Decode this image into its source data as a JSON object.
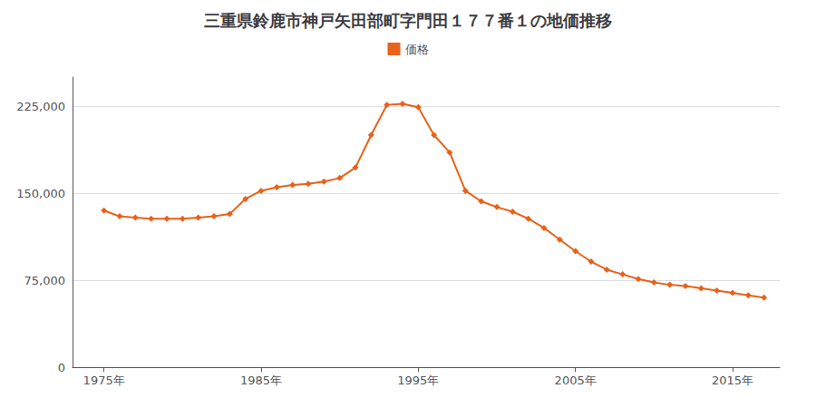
{
  "chart_data": {
    "type": "line",
    "title": "三重県鈴鹿市神戸矢田部町字門田１７７番１の地価推移",
    "x": [
      1975,
      1976,
      1977,
      1978,
      1979,
      1980,
      1981,
      1982,
      1983,
      1984,
      1985,
      1986,
      1987,
      1988,
      1989,
      1990,
      1991,
      1992,
      1993,
      1994,
      1995,
      1996,
      1997,
      1998,
      1999,
      2000,
      2001,
      2002,
      2003,
      2004,
      2005,
      2006,
      2007,
      2008,
      2009,
      2010,
      2011,
      2012,
      2013,
      2014,
      2015,
      2016,
      2017
    ],
    "series": [
      {
        "name": "価格",
        "color": "#e8621a",
        "marker": "diamond",
        "values": [
          135000,
          130000,
          129000,
          128000,
          128000,
          128000,
          129000,
          130000,
          132000,
          145000,
          152000,
          155000,
          157000,
          158000,
          160000,
          163000,
          172000,
          200000,
          226000,
          227000,
          224000,
          200000,
          185000,
          152000,
          143000,
          138000,
          134000,
          128000,
          120000,
          110000,
          100000,
          91000,
          84000,
          80000,
          76000,
          73000,
          71000,
          70000,
          68000,
          66000,
          64000,
          62000,
          60000
        ]
      }
    ],
    "xlim": [
      1973,
      2018
    ],
    "xticks": [
      {
        "value": 1975,
        "label": "1975年"
      },
      {
        "value": 1985,
        "label": "1985年"
      },
      {
        "value": 1995,
        "label": "1995年"
      },
      {
        "value": 2005,
        "label": "2005年"
      },
      {
        "value": 2015,
        "label": "2015年"
      }
    ],
    "ylim": [
      0,
      250000
    ],
    "yticks": [
      0,
      {
        "value": 75000,
        "label": "75,000"
      },
      {
        "value": 150000,
        "label": "150,000"
      },
      {
        "value": 225000,
        "label": "225,000"
      }
    ],
    "grid": true,
    "legend": "top"
  }
}
